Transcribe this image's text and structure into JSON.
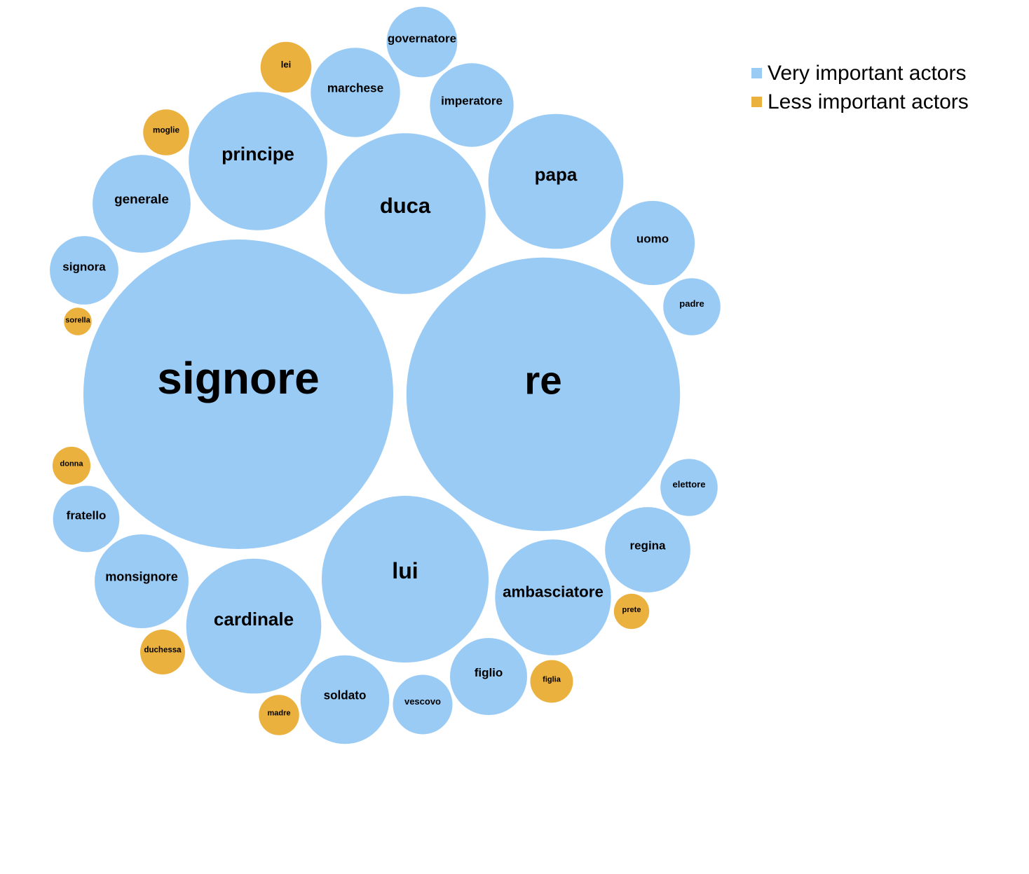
{
  "colors": {
    "very_important": "#99cbf5",
    "less_important": "#ebb13f"
  },
  "legend": {
    "very_important": "Very important actors",
    "less_important": "Less important actors"
  },
  "chart_data": {
    "type": "bubble",
    "title": "",
    "groups": [
      "Very important actors",
      "Less important actors"
    ],
    "nodes": [
      {
        "label": "signore",
        "group": "very_important",
        "size": 100
      },
      {
        "label": "re",
        "group": "very_important",
        "size": 78
      },
      {
        "label": "duca",
        "group": "very_important",
        "size": 27
      },
      {
        "label": "lui",
        "group": "very_important",
        "size": 29
      },
      {
        "label": "papa",
        "group": "very_important",
        "size": 19
      },
      {
        "label": "principe",
        "group": "very_important",
        "size": 20
      },
      {
        "label": "cardinale",
        "group": "very_important",
        "size": 19
      },
      {
        "label": "ambasciatore",
        "group": "very_important",
        "size": 14
      },
      {
        "label": "generale",
        "group": "very_important",
        "size": 10
      },
      {
        "label": "monsignore",
        "group": "very_important",
        "size": 9.2
      },
      {
        "label": "marchese",
        "group": "very_important",
        "size": 8.3
      },
      {
        "label": "soldato",
        "group": "very_important",
        "size": 8.2
      },
      {
        "label": "uomo",
        "group": "very_important",
        "size": 7.4
      },
      {
        "label": "regina",
        "group": "very_important",
        "size": 7.6
      },
      {
        "label": "imperatore",
        "group": "very_important",
        "size": 7.3
      },
      {
        "label": "figlio",
        "group": "very_important",
        "size": 6.2
      },
      {
        "label": "governatore",
        "group": "very_important",
        "size": 5.2
      },
      {
        "label": "signora",
        "group": "very_important",
        "size": 4.9
      },
      {
        "label": "fratello",
        "group": "very_important",
        "size": 4.6
      },
      {
        "label": "vescovo",
        "group": "very_important",
        "size": 3.7
      },
      {
        "label": "padre",
        "group": "very_important",
        "size": 3.4
      },
      {
        "label": "elettore",
        "group": "very_important",
        "size": 3.4
      },
      {
        "label": "lei",
        "group": "less_important",
        "size": 2.7
      },
      {
        "label": "moglie",
        "group": "less_important",
        "size": 2.2
      },
      {
        "label": "duchessa",
        "group": "less_important",
        "size": 2.1
      },
      {
        "label": "figlia",
        "group": "less_important",
        "size": 1.9
      },
      {
        "label": "madre",
        "group": "less_important",
        "size": 1.7
      },
      {
        "label": "donna",
        "group": "less_important",
        "size": 1.5
      },
      {
        "label": "prete",
        "group": "less_important",
        "size": 1.3
      },
      {
        "label": "sorella",
        "group": "less_important",
        "size": 0.8
      }
    ]
  }
}
